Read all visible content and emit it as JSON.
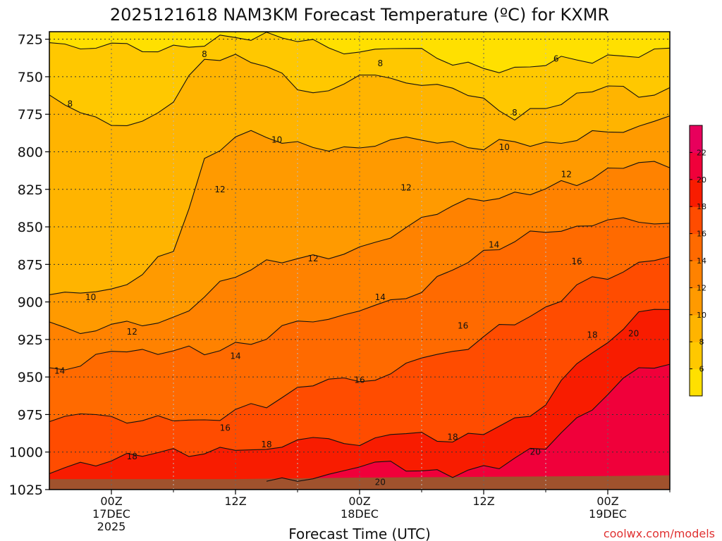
{
  "chart_data": {
    "type": "heatmap",
    "title": "2025121618 NAM3KM Forecast Temperature (ºC) for KXMR",
    "xlabel": "Forecast Time (UTC)",
    "ylabel": "",
    "credit": "coolwx.com/models",
    "credit_color": "#e03030",
    "y_axis": {
      "ticks": [
        725,
        750,
        775,
        800,
        825,
        850,
        875,
        900,
        925,
        950,
        975,
        1000,
        1025
      ],
      "range": [
        720,
        1025
      ]
    },
    "x_axis": {
      "range_hours": [
        -6,
        54
      ],
      "ticks": [
        {
          "hour": 0,
          "lines": [
            "00Z",
            "17DEC",
            "2025"
          ]
        },
        {
          "hour": 12,
          "lines": [
            "12Z"
          ]
        },
        {
          "hour": 24,
          "lines": [
            "00Z",
            "18DEC"
          ]
        },
        {
          "hour": 36,
          "lines": [
            "12Z"
          ]
        },
        {
          "hour": 48,
          "lines": [
            "00Z",
            "19DEC"
          ]
        }
      ]
    },
    "colorbar": {
      "levels": [
        4,
        6,
        8,
        10,
        12,
        14,
        16,
        18,
        20,
        22,
        24
      ],
      "tick_labels": [
        "6",
        "8",
        "10",
        "12",
        "14",
        "16",
        "18",
        "20",
        "22"
      ],
      "colors": [
        "#ffe000",
        "#ffc800",
        "#ffb400",
        "#ff9a00",
        "#ff8200",
        "#ff6a00",
        "#ff4c00",
        "#f81c00",
        "#f0003a",
        "#e8005c"
      ]
    },
    "contour_labels": [
      {
        "value": "8",
        "hour": 9,
        "p": 735
      },
      {
        "value": "8",
        "hour": 26,
        "p": 741
      },
      {
        "value": "6",
        "hour": 43,
        "p": 738
      },
      {
        "value": "8",
        "hour": -4,
        "p": 768
      },
      {
        "value": "8",
        "hour": 39,
        "p": 774
      },
      {
        "value": "10",
        "hour": 16,
        "p": 792
      },
      {
        "value": "10",
        "hour": 38,
        "p": 797
      },
      {
        "value": "12",
        "hour": 10.5,
        "p": 825
      },
      {
        "value": "12",
        "hour": 28.5,
        "p": 824
      },
      {
        "value": "12",
        "hour": 44,
        "p": 815
      },
      {
        "value": "12",
        "hour": 19.5,
        "p": 871
      },
      {
        "value": "14",
        "hour": 37,
        "p": 862
      },
      {
        "value": "16",
        "hour": 45,
        "p": 873
      },
      {
        "value": "10",
        "hour": -2,
        "p": 897
      },
      {
        "value": "14",
        "hour": 26,
        "p": 897
      },
      {
        "value": "12",
        "hour": 2,
        "p": 920
      },
      {
        "value": "16",
        "hour": 34,
        "p": 916
      },
      {
        "value": "18",
        "hour": 46.5,
        "p": 922
      },
      {
        "value": "20",
        "hour": 50.5,
        "p": 921
      },
      {
        "value": "14",
        "hour": 12,
        "p": 936
      },
      {
        "value": "14",
        "hour": -5,
        "p": 946
      },
      {
        "value": "16",
        "hour": 24,
        "p": 952
      },
      {
        "value": "16",
        "hour": 11,
        "p": 984
      },
      {
        "value": "18",
        "hour": 33,
        "p": 990
      },
      {
        "value": "18",
        "hour": 15,
        "p": 995
      },
      {
        "value": "18",
        "hour": 2,
        "p": 1003
      },
      {
        "value": "20",
        "hour": 41,
        "p": 1000
      },
      {
        "value": "20",
        "hour": 26,
        "p": 1020
      }
    ]
  }
}
